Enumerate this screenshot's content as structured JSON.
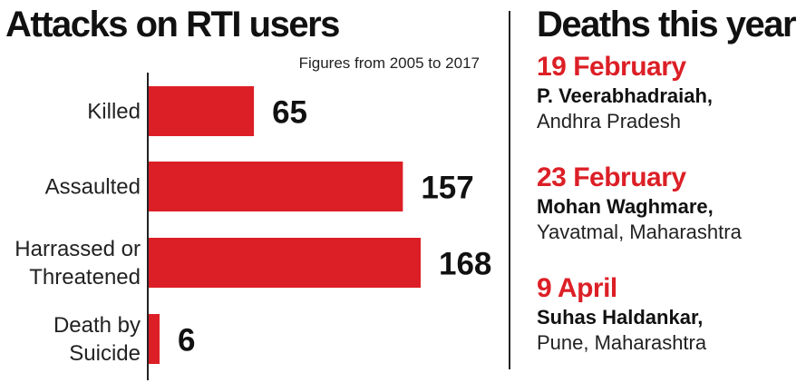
{
  "left_panel": {
    "title": "Attacks on RTI users",
    "subtitle": "Figures from 2005 to 2017"
  },
  "chart_data": {
    "type": "bar",
    "orientation": "horizontal",
    "title": "Attacks on RTI users",
    "subtitle": "Figures from 2005 to 2017",
    "categories": [
      [
        "Killed"
      ],
      [
        "Assaulted"
      ],
      [
        "Harrassed or",
        "Threatened"
      ],
      [
        "Death by",
        "Suicide"
      ]
    ],
    "values": [
      65,
      157,
      168,
      6
    ],
    "data_labels": [
      "65",
      "157",
      "168",
      "6"
    ],
    "xlim": [
      0,
      168
    ],
    "grid": false,
    "bar_color": "#dc1f26"
  },
  "right_panel": {
    "title": "Deaths this year",
    "events": [
      {
        "date": "19 February",
        "name": "P. Veerabhadraiah,",
        "place": "Andhra Pradesh"
      },
      {
        "date": "23 February",
        "name": "Mohan Waghmare,",
        "place": "Yavatmal, Maharashtra"
      },
      {
        "date": "9 April",
        "name": "Suhas Haldankar,",
        "place": "Pune, Maharashtra"
      }
    ]
  },
  "colors": {
    "accent": "#dc1f26",
    "text": "#111111"
  }
}
